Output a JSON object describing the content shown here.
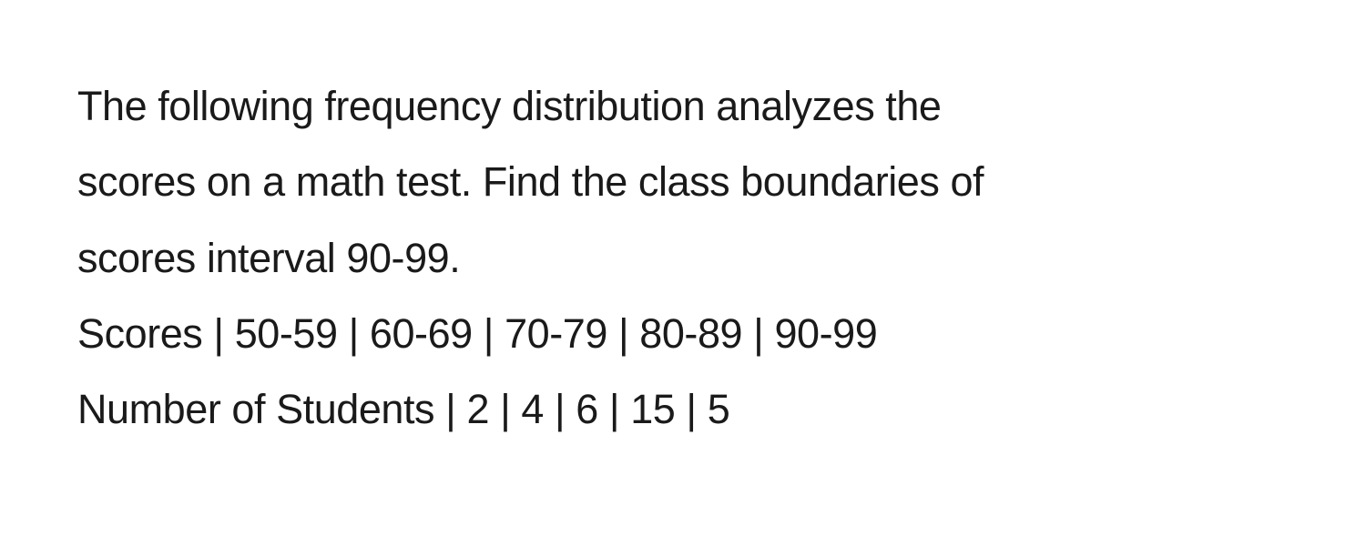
{
  "problem": {
    "line1": "The following frequency distribution analyzes the",
    "line2": "scores on a math test. Find the class boundaries of",
    "line3": "scores interval 90-99.",
    "line4": "Scores | 50-59 | 60-69 | 70-79 | 80-89 | 90-99",
    "line5": "Number of Students | 2 | 4 | 6 | 15 | 5"
  },
  "table_data": {
    "type": "table",
    "columns": [
      "Scores",
      "50-59",
      "60-69",
      "70-79",
      "80-89",
      "90-99"
    ],
    "rows": [
      [
        "Number of Students",
        "2",
        "4",
        "6",
        "15",
        "5"
      ]
    ],
    "separator": " | "
  },
  "styling": {
    "background_color": "#ffffff",
    "text_color": "#1a1a1a",
    "font_size": 45,
    "line_height": 1.85,
    "font_weight": 400
  }
}
